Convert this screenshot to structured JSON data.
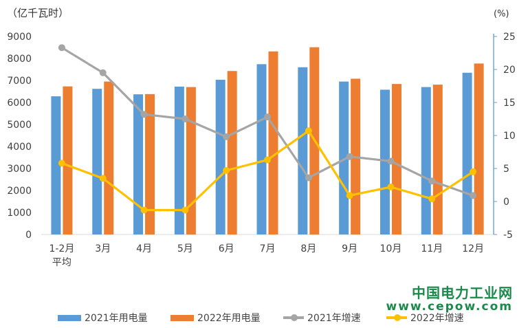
{
  "units": {
    "left": "（亿千瓦时）",
    "right": "(%)"
  },
  "watermark": {
    "cn": "中国电力工业网",
    "url": "www.cepow.com"
  },
  "colors": {
    "s2021_bar": "#5b9bd5",
    "s2022_bar": "#ed7d31",
    "s2021_line": "#a5a5a5",
    "s2022_line": "#ffc000",
    "axis": "#5b9bd5"
  },
  "chart_data": {
    "type": "bar",
    "categories": [
      "1-2月\n平均",
      "3月",
      "4月",
      "5月",
      "6月",
      "7月",
      "8月",
      "9月",
      "10月",
      "11月",
      "12月"
    ],
    "series": [
      {
        "name": "2021年用电量",
        "type": "bar",
        "axis": "left",
        "values": [
          6280,
          6620,
          6370,
          6720,
          7030,
          7740,
          7600,
          6950,
          6580,
          6700,
          7350
        ]
      },
      {
        "name": "2022年用电量",
        "type": "bar",
        "axis": "left",
        "values": [
          6730,
          6950,
          6380,
          6700,
          7430,
          8320,
          8510,
          7080,
          6840,
          6810,
          7770
        ]
      },
      {
        "name": "2021年增速",
        "type": "line",
        "axis": "right",
        "values": [
          23.3,
          19.5,
          13.2,
          12.5,
          9.8,
          12.8,
          3.6,
          6.8,
          6.1,
          3.1,
          0.9
        ]
      },
      {
        "name": "2022年增速",
        "type": "line",
        "axis": "right",
        "values": [
          5.8,
          3.5,
          -1.3,
          -1.3,
          4.7,
          6.3,
          10.7,
          0.9,
          2.2,
          0.4,
          4.5
        ]
      }
    ],
    "y_left": {
      "min": 0,
      "max": 9000,
      "step": 1000,
      "ticks": [
        "0",
        "1000",
        "2000",
        "3000",
        "4000",
        "5000",
        "6000",
        "7000",
        "8000",
        "9000"
      ]
    },
    "y_right": {
      "min": -5,
      "max": 25,
      "step": 5,
      "ticks": [
        "-5",
        "0",
        "5",
        "10",
        "15",
        "20",
        "25"
      ]
    },
    "grid": false,
    "legend_position": "bottom"
  }
}
